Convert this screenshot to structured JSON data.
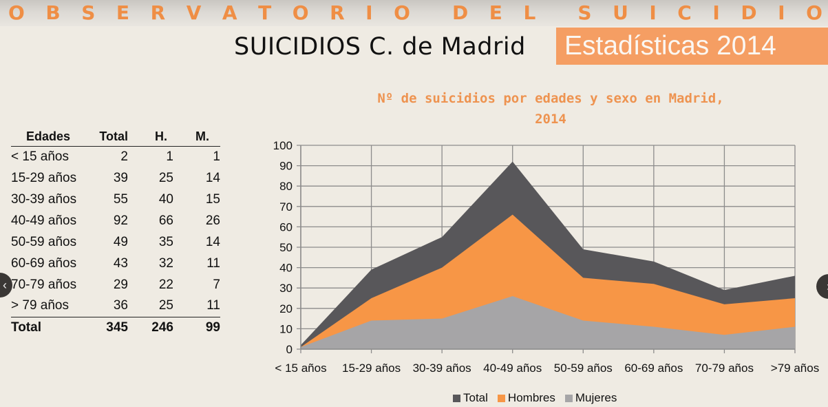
{
  "banner": {
    "words": [
      [
        "O",
        "B",
        "S",
        "E",
        "R",
        "V",
        "A",
        "T",
        "O",
        "R",
        "I",
        "O"
      ],
      [
        "D",
        "E",
        "L"
      ],
      [
        "S",
        "U",
        "I",
        "C",
        "I",
        "D",
        "I",
        "O"
      ]
    ]
  },
  "header": {
    "title_main": "SUICIDIOS C. de Madrid",
    "title_badge": "Estadísticas 2014",
    "badge_color": "#f59e63"
  },
  "table": {
    "headers": [
      "Edades",
      "Total",
      "H.",
      "M."
    ],
    "rows": [
      [
        "< 15 años",
        "2",
        "1",
        "1"
      ],
      [
        "15-29 años",
        "39",
        "25",
        "14"
      ],
      [
        "30-39 años",
        "55",
        "40",
        "15"
      ],
      [
        "40-49 años",
        "92",
        "66",
        "26"
      ],
      [
        "50-59 años",
        "49",
        "35",
        "14"
      ],
      [
        "60-69 años",
        "43",
        "32",
        "11"
      ],
      [
        "70-79 años",
        "29",
        "22",
        "7"
      ],
      [
        "> 79 años",
        "36",
        "25",
        "11"
      ]
    ],
    "total_row": [
      "Total",
      "345",
      "246",
      "99"
    ]
  },
  "navigation": {
    "prev_icon": "chevron-left-icon",
    "prev_glyph": "‹",
    "next_icon": "chevron-right-icon",
    "next_glyph": "›"
  },
  "chart_data": {
    "type": "area",
    "title": "Nº de suicidios por edades y sexo en Madrid, 2014",
    "title_lines": [
      "Nº de suicidios por edades y sexo en Madrid,",
      "2014"
    ],
    "xlabel": "",
    "ylabel": "",
    "categories": [
      "< 15 años",
      "15-29 años",
      "30-39 años",
      "40-49 años",
      "50-59 años",
      "60-69 años",
      "70-79 años",
      ">79 años"
    ],
    "ylim": [
      0,
      100
    ],
    "yticks": [
      0,
      10,
      20,
      30,
      40,
      50,
      60,
      70,
      80,
      90,
      100
    ],
    "grid": true,
    "stacked": false,
    "series": [
      {
        "name": "Total",
        "color": "#58575a",
        "values": [
          2,
          39,
          55,
          92,
          49,
          43,
          29,
          36
        ]
      },
      {
        "name": "Hombres",
        "color": "#f79646",
        "values": [
          1,
          25,
          40,
          66,
          35,
          32,
          22,
          25
        ]
      },
      {
        "name": "Mujeres",
        "color": "#a6a5a7",
        "values": [
          1,
          14,
          15,
          26,
          14,
          11,
          7,
          11
        ]
      }
    ],
    "legend_position": "bottom"
  }
}
